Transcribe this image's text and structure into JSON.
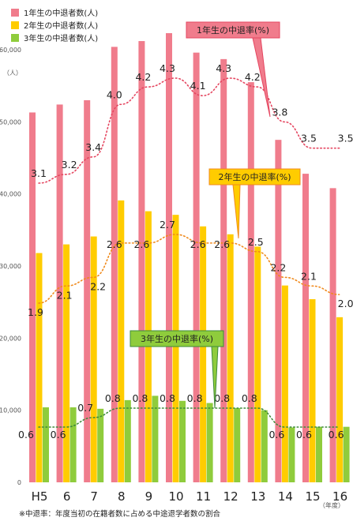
{
  "chart_data": {
    "type": "bar",
    "y_unit_label": "（人）",
    "x_unit_label": "（年度）",
    "footnote": "※中退率：年度当初の在籍者数に占める中途退学者数の割合",
    "ylim": [
      0,
      60000
    ],
    "y_ticks": [
      "0",
      "10,000",
      "20,000",
      "30,000",
      "40,000",
      "50,000",
      "60,000"
    ],
    "categories": [
      "H5",
      "6",
      "7",
      "8",
      "9",
      "10",
      "11",
      "12",
      "13",
      "14",
      "15",
      "16"
    ],
    "series": [
      {
        "name": "1年生の中退者数(人)",
        "color": "#f07c8c",
        "values": [
          51300,
          52400,
          53000,
          60400,
          61200,
          62300,
          59600,
          58700,
          55500,
          47500,
          42800,
          40800
        ]
      },
      {
        "name": "2年生の中退者数(人)",
        "color": "#ffcc00",
        "values": [
          31800,
          33000,
          34100,
          39100,
          37600,
          37100,
          35500,
          34400,
          32700,
          27300,
          25400,
          22900
        ]
      },
      {
        "name": "3年生の中退者数(人)",
        "color": "#8fcc3c",
        "values": [
          10400,
          10400,
          10200,
          11400,
          12000,
          11300,
          11000,
          10300,
          10000,
          7600,
          7700,
          7700
        ]
      }
    ],
    "rate_series": [
      {
        "name": "1年生の中退率(%)",
        "color": "#e54660",
        "values": [
          3.1,
          3.2,
          3.4,
          4.0,
          4.2,
          4.3,
          4.1,
          4.3,
          4.2,
          3.8,
          3.5,
          3.5
        ],
        "labels": [
          "3.1",
          "3.2",
          "3.4",
          "4.0",
          "4.2",
          "4.3",
          "4.1",
          "4.3",
          "4.2",
          "3.8",
          "3.5",
          "3.5"
        ]
      },
      {
        "name": "2年生の中退率(%)",
        "color": "#f08a1c",
        "values": [
          1.9,
          2.1,
          2.2,
          2.6,
          2.6,
          2.7,
          2.6,
          2.6,
          2.5,
          2.2,
          2.1,
          2.0
        ],
        "labels": [
          "1.9",
          "2.1",
          "2.2",
          "2.6",
          "2.6",
          "2.7",
          "2.6",
          "2.6",
          "2.5",
          "2.2",
          "2.1",
          "2.0"
        ]
      },
      {
        "name": "3年生の中退率(%)",
        "color": "#3d8a3a",
        "values": [
          0.6,
          0.6,
          0.7,
          0.8,
          0.8,
          0.8,
          0.8,
          0.8,
          0.8,
          0.6,
          0.6,
          0.6
        ],
        "labels": [
          "0.6",
          "0.6",
          "0.7",
          "0.8",
          "0.8",
          "0.8",
          "0.8",
          "0.8",
          "0.8",
          "0.6",
          "0.6",
          "0.6"
        ]
      }
    ]
  }
}
